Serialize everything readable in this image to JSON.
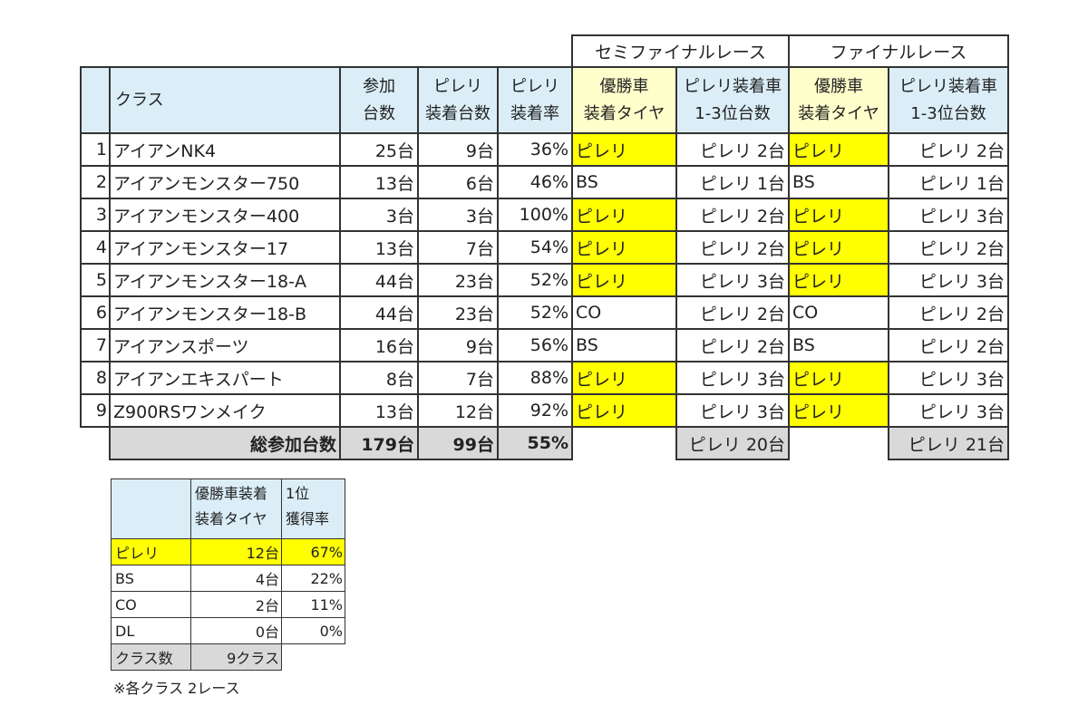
{
  "main_table": {
    "group_semifinal": "セミファイナルレース",
    "group_final": "ファイナルレース",
    "headers": {
      "class": "クラス",
      "entries_1": "参加",
      "entries_2": "台数",
      "pirelli_count_1": "ピレリ",
      "pirelli_count_2": "装着台数",
      "pirelli_rate_1": "ピレリ",
      "pirelli_rate_2": "装着率",
      "semi_winner_1": "優勝車",
      "semi_winner_2": "装着タイヤ",
      "semi_top3_1": "ピレリ装着車",
      "semi_top3_2": "1-3位台数",
      "final_winner_1": "優勝車",
      "final_winner_2": "装着タイヤ",
      "final_top3_1": "ピレリ装着車",
      "final_top3_2": "1-3位台数"
    },
    "rows": [
      {
        "no": "1",
        "class": "アイアンNK4",
        "entries": "25台",
        "pirelli": "9台",
        "rate": "36%",
        "semi_winner": "ピレリ",
        "semi_top3": "ピレリ 2台",
        "final_winner": "ピレリ",
        "final_top3": "ピレリ 2台"
      },
      {
        "no": "2",
        "class": "アイアンモンスター750",
        "entries": "13台",
        "pirelli": "6台",
        "rate": "46%",
        "semi_winner": "BS",
        "semi_top3": "ピレリ 1台",
        "final_winner": "BS",
        "final_top3": "ピレリ 1台"
      },
      {
        "no": "3",
        "class": "アイアンモンスター400",
        "entries": "3台",
        "pirelli": "3台",
        "rate": "100%",
        "semi_winner": "ピレリ",
        "semi_top3": "ピレリ 2台",
        "final_winner": "ピレリ",
        "final_top3": "ピレリ 3台"
      },
      {
        "no": "4",
        "class": "アイアンモンスター17",
        "entries": "13台",
        "pirelli": "7台",
        "rate": "54%",
        "semi_winner": "ピレリ",
        "semi_top3": "ピレリ 2台",
        "final_winner": "ピレリ",
        "final_top3": "ピレリ 2台"
      },
      {
        "no": "5",
        "class": "アイアンモンスター18-A",
        "entries": "44台",
        "pirelli": "23台",
        "rate": "52%",
        "semi_winner": "ピレリ",
        "semi_top3": "ピレリ 3台",
        "final_winner": "ピレリ",
        "final_top3": "ピレリ 3台"
      },
      {
        "no": "6",
        "class": "アイアンモンスター18-B",
        "entries": "44台",
        "pirelli": "23台",
        "rate": "52%",
        "semi_winner": "CO",
        "semi_top3": "ピレリ 2台",
        "final_winner": "CO",
        "final_top3": "ピレリ 2台"
      },
      {
        "no": "7",
        "class": "アイアンスポーツ",
        "entries": "16台",
        "pirelli": "9台",
        "rate": "56%",
        "semi_winner": "BS",
        "semi_top3": "ピレリ 2台",
        "final_winner": "BS",
        "final_top3": "ピレリ 2台"
      },
      {
        "no": "8",
        "class": "アイアンエキスパート",
        "entries": "8台",
        "pirelli": "7台",
        "rate": "88%",
        "semi_winner": "ピレリ",
        "semi_top3": "ピレリ 3台",
        "final_winner": "ピレリ",
        "final_top3": "ピレリ 3台"
      },
      {
        "no": "9",
        "class": "Z900RSワンメイク",
        "entries": "13台",
        "pirelli": "12台",
        "rate": "92%",
        "semi_winner": "ピレリ",
        "semi_top3": "ピレリ 3台",
        "final_winner": "ピレリ",
        "final_top3": "ピレリ 3台"
      }
    ],
    "totals": {
      "label": "総参加台数",
      "entries": "179台",
      "pirelli": "99台",
      "rate": "55%",
      "semi_top3": "ピレリ 20台",
      "final_top3": "ピレリ 21台"
    }
  },
  "summary_table": {
    "header_col2_1": "優勝車装着",
    "header_col2_2": "装着タイヤ",
    "header_col3_1": "1位",
    "header_col3_2": "獲得率",
    "rows": [
      {
        "brand": "ピレリ",
        "count": "12台",
        "rate": "67%"
      },
      {
        "brand": "BS",
        "count": "4台",
        "rate": "22%"
      },
      {
        "brand": "CO",
        "count": "2台",
        "rate": "11%"
      },
      {
        "brand": "DL",
        "count": "0台",
        "rate": "0%"
      }
    ],
    "class_count_label": "クラス数",
    "class_count_value": "9クラス"
  },
  "note": "※各クラス 2レース",
  "colors": {
    "highlight_yellow": "#ffff00",
    "header_blue": "#dbeef8",
    "header_light_yellow": "#ffffcc",
    "total_gray": "#d9d9d9"
  }
}
